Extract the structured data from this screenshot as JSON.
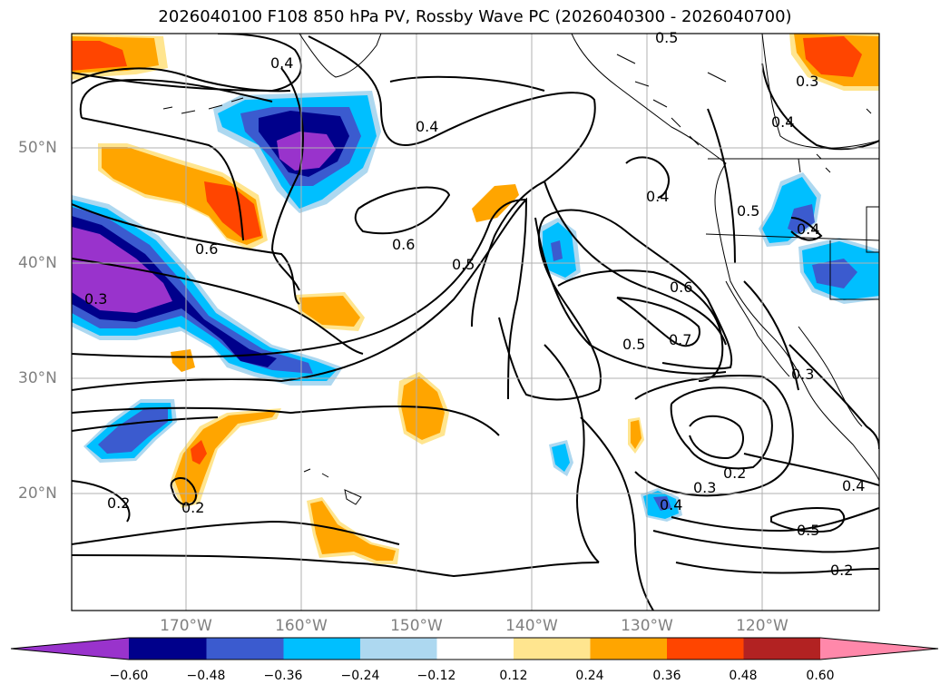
{
  "title": "2026040100 F108 850 hPa PV, Rossby Wave PC (2026040300 - 2026040700)",
  "lat_labels": [
    "50°N",
    "40°N",
    "30°N",
    "20°N"
  ],
  "lon_labels": [
    "170°W",
    "160°W",
    "150°W",
    "140°W",
    "130°W",
    "120°W"
  ],
  "colorbar": {
    "colors": [
      "#9933cc",
      "#00008b",
      "#3b5bcf",
      "#00bfff",
      "#add8f0",
      "#ffffff",
      "#ffe58f",
      "#ffa500",
      "#ff4500",
      "#b22222",
      "#ff88aa"
    ],
    "tick_labels": [
      "−0.60",
      "−0.48",
      "−0.36",
      "−0.24",
      "−0.12",
      "0.12",
      "0.24",
      "0.36",
      "0.48",
      "0.60"
    ]
  },
  "contour_labels": [
    "0.5",
    "0.4",
    "0.4",
    "0.3",
    "0.4",
    "0.5",
    "0.4",
    "0.6",
    "0.6",
    "0.5",
    "0.6",
    "0.7",
    "0.5",
    "0.3",
    "0.3",
    "0.2",
    "0.4",
    "0.5",
    "0.3",
    "0.2",
    "0.4",
    "0.2",
    "0.2",
    "0.4"
  ]
}
